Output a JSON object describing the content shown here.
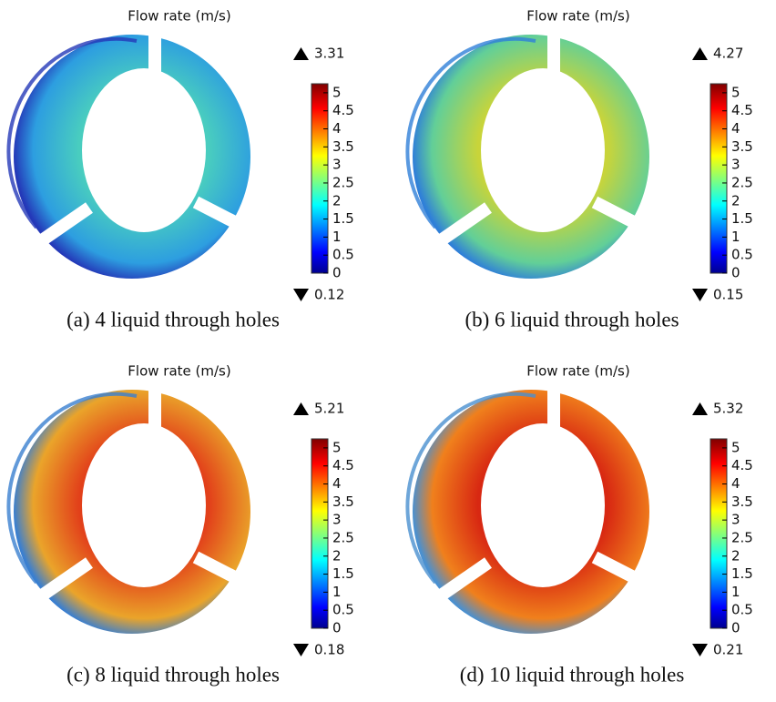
{
  "panels": [
    {
      "title": "Flow rate (m/s)",
      "max": 3.31,
      "min": 0.12,
      "colorbar": {
        "range": [
          0,
          5.25
        ],
        "ticks": [
          0,
          0.5,
          1,
          1.5,
          2,
          2.5,
          3,
          3.5,
          4,
          4.5,
          5
        ]
      },
      "caption": "(a) 4 liquid through holes"
    },
    {
      "title": "Flow rate (m/s)",
      "max": 4.27,
      "min": 0.15,
      "colorbar": {
        "range": [
          0,
          5.25
        ],
        "ticks": [
          0,
          0.5,
          1,
          1.5,
          2,
          2.5,
          3,
          3.5,
          4,
          4.5,
          5
        ]
      },
      "caption": "(b) 6 liquid through holes"
    },
    {
      "title": "Flow rate (m/s)",
      "max": 5.21,
      "min": 0.18,
      "colorbar": {
        "range": [
          0,
          5.25
        ],
        "ticks": [
          0,
          0.5,
          1,
          1.5,
          2,
          2.5,
          3,
          3.5,
          4,
          4.5,
          5
        ]
      },
      "caption": "(c) 8 liquid through holes"
    },
    {
      "title": "Flow rate (m/s)",
      "max": 5.32,
      "min": 0.21,
      "colorbar": {
        "range": [
          0,
          5.25
        ],
        "ticks": [
          0,
          0.5,
          1,
          1.5,
          2,
          2.5,
          3,
          3.5,
          4,
          4.5,
          5
        ]
      },
      "caption": "(d) 10 liquid through holes"
    }
  ]
}
